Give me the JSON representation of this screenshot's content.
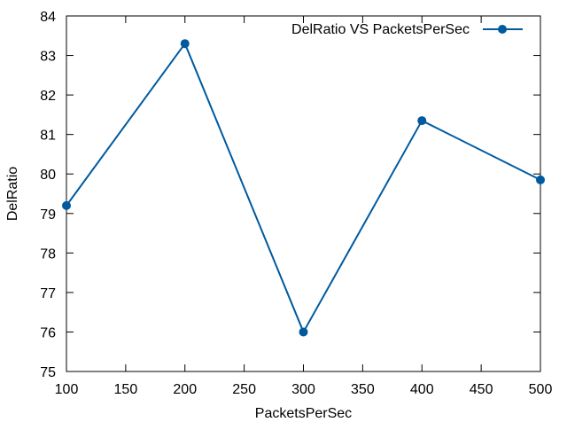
{
  "chart_data": {
    "type": "line",
    "title": "",
    "xlabel": "PacketsPerSec",
    "ylabel": "DelRatio",
    "x": [
      100,
      200,
      300,
      400,
      500
    ],
    "series": [
      {
        "name": "DelRatio VS PacketsPerSec",
        "values": [
          79.2,
          83.3,
          76.0,
          81.35,
          79.85
        ],
        "color": "#005a9e",
        "marker": "circle"
      }
    ],
    "xlim": [
      100,
      500
    ],
    "ylim": [
      75,
      84
    ],
    "xticks": [
      100,
      150,
      200,
      250,
      300,
      350,
      400,
      450,
      500
    ],
    "yticks": [
      75,
      76,
      77,
      78,
      79,
      80,
      81,
      82,
      83,
      84
    ],
    "grid": false,
    "legend_position": "top-right"
  }
}
